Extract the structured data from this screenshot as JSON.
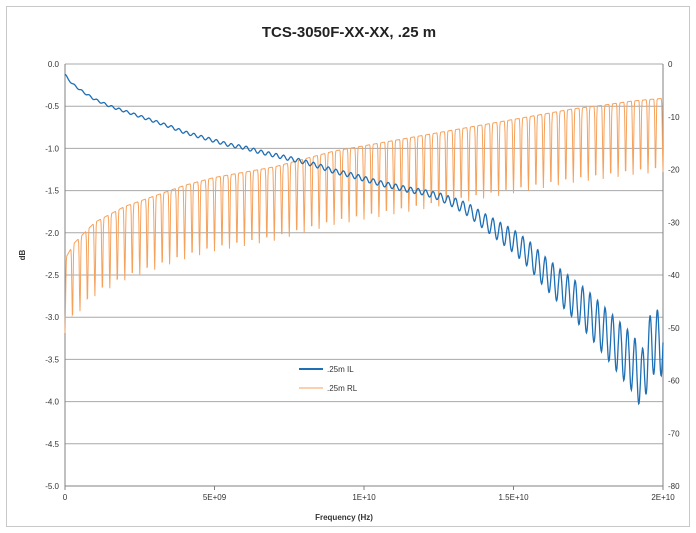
{
  "chart_data": {
    "type": "line",
    "title": "TCS-3050F-XX-XX, .25 m",
    "xlabel": "Frequency (Hz)",
    "ylabel": "dB",
    "xlim": [
      0,
      20000000000
    ],
    "ylim": [
      -5.0,
      0.0
    ],
    "y2lim": [
      -80,
      0
    ],
    "x_ticks": [
      "0",
      "5E+09",
      "1E+10",
      "1.5E+10",
      "2E+10"
    ],
    "y_ticks": [
      "0.0",
      "-0.5",
      "-1.0",
      "-1.5",
      "-2.0",
      "-2.5",
      "-3.0",
      "-3.5",
      "-4.0",
      "-4.5",
      "-5.0"
    ],
    "y2_ticks": [
      "0",
      "-10",
      "-20",
      "-30",
      "-40",
      "-50",
      "-60",
      "-70",
      "-80"
    ],
    "grid": "horizontal",
    "legend_position": "center-left",
    "colors": {
      "il": "#1f6fb5",
      "rl": "#f5a25d"
    },
    "series": [
      {
        "name": ".25m IL",
        "axis": "left",
        "x": [
          0,
          100000000,
          300000000,
          600000000,
          1000000000,
          1500000000,
          2000000000,
          2500000000,
          3000000000,
          3500000000,
          4000000000,
          4500000000,
          5000000000,
          5500000000,
          6000000000,
          6500000000,
          7000000000,
          7500000000,
          8000000000,
          8500000000,
          9000000000,
          9500000000,
          10000000000,
          10500000000,
          11000000000,
          11500000000,
          12000000000,
          12500000000,
          13000000000,
          13500000000,
          14000000000,
          14500000000,
          15000000000,
          15500000000,
          16000000000,
          16500000000,
          17000000000,
          17500000000,
          18000000000,
          18500000000,
          19000000000,
          19300000000,
          19600000000,
          20000000000
        ],
        "y": [
          -0.12,
          -0.18,
          -0.25,
          -0.33,
          -0.42,
          -0.5,
          -0.56,
          -0.62,
          -0.68,
          -0.74,
          -0.81,
          -0.86,
          -0.91,
          -0.96,
          -0.99,
          -1.04,
          -1.08,
          -1.12,
          -1.16,
          -1.21,
          -1.27,
          -1.31,
          -1.36,
          -1.41,
          -1.45,
          -1.49,
          -1.52,
          -1.57,
          -1.64,
          -1.73,
          -1.86,
          -1.98,
          -2.1,
          -2.25,
          -2.45,
          -2.62,
          -2.78,
          -2.95,
          -3.15,
          -3.35,
          -3.55,
          -3.75,
          -3.3,
          -3.3
        ]
      },
      {
        "name": ".25m RL",
        "axis": "right",
        "x": [
          0,
          300000000,
          1000000000,
          2000000000,
          3000000000,
          4000000000,
          5000000000,
          6000000000,
          7000000000,
          8000000000,
          9000000000,
          10000000000,
          11000000000,
          12000000000,
          13000000000,
          14000000000,
          15000000000,
          16000000000,
          17000000000,
          18000000000,
          19000000000,
          20000000000
        ],
        "y": [
          -37,
          -34,
          -30,
          -27,
          -25,
          -23,
          -21.5,
          -20.5,
          -19.5,
          -18,
          -16.5,
          -15.5,
          -14.5,
          -13.5,
          -12.5,
          -11.5,
          -10.5,
          -9.5,
          -8.5,
          -7.8,
          -7,
          -6.5
        ]
      }
    ]
  }
}
